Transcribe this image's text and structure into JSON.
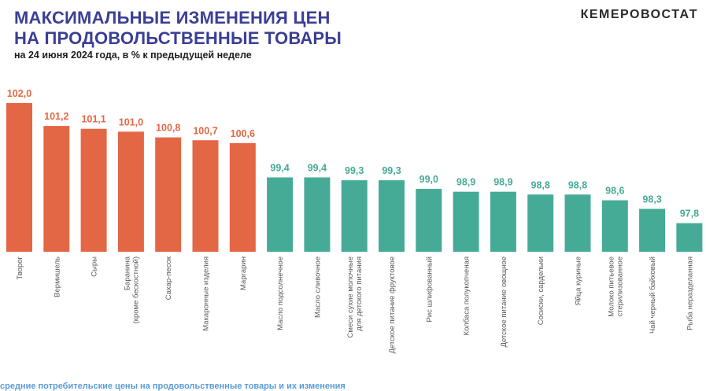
{
  "header": {
    "title_line1": "МАКСИМАЛЬНЫЕ ИЗМЕНЕНИЯ ЦЕН",
    "title_line2": "НА ПРОДОВОЛЬСТВЕННЫЕ ТОВАРЫ",
    "subtitle": "на 24 июня 2024 года, в % к предыдущей неделе",
    "brand": "КЕМЕРОВОСТАТ"
  },
  "footer": {
    "text": "средние потребительские цены на продовольственные товары и их изменения"
  },
  "colors": {
    "increase": "#e36744",
    "decrease": "#46ab96",
    "title": "#3b3f95",
    "value_increase": "#e36744",
    "value_decrease": "#46ab96"
  },
  "chart_data": {
    "type": "bar",
    "title": "",
    "xlabel": "",
    "ylabel": "",
    "ylim": [
      96.8,
      102.0
    ],
    "grid": false,
    "legend": "none",
    "categories": [
      [
        "Творог"
      ],
      [
        "Вермишель"
      ],
      [
        "Сыры"
      ],
      [
        "Баранина",
        "(кроме бескостной)"
      ],
      [
        "Сахар-песок"
      ],
      [
        "Макаронные изделия"
      ],
      [
        "Маргарин"
      ],
      [
        "Масло подсолнечное"
      ],
      [
        "Масло сливочное"
      ],
      [
        "Смеси сухие молочные",
        "для детского питания"
      ],
      [
        "Детское питание фруктовое"
      ],
      [
        "Рис шлифованный"
      ],
      [
        "Колбаса полукопченая"
      ],
      [
        "Детское питание овощное"
      ],
      [
        "Сосиски, сардельки"
      ],
      [
        "Яйца куриные"
      ],
      [
        "Молоко питьевое",
        "стерилизованное"
      ],
      [
        "Чай черный байховый"
      ],
      [
        "Рыба неразделанная"
      ]
    ],
    "values": [
      102.0,
      101.2,
      101.1,
      101.0,
      100.8,
      100.7,
      100.6,
      99.4,
      99.4,
      99.3,
      99.3,
      99.0,
      98.9,
      98.9,
      98.8,
      98.8,
      98.6,
      98.3,
      97.8
    ],
    "value_labels": [
      "102,0",
      "101,2",
      "101,1",
      "101,0",
      "100,8",
      "100,7",
      "100,6",
      "99,4",
      "99,4",
      "99,3",
      "99,3",
      "99,0",
      "98,9",
      "98,9",
      "98,8",
      "98,8",
      "98,6",
      "98,3",
      "97,8"
    ]
  }
}
